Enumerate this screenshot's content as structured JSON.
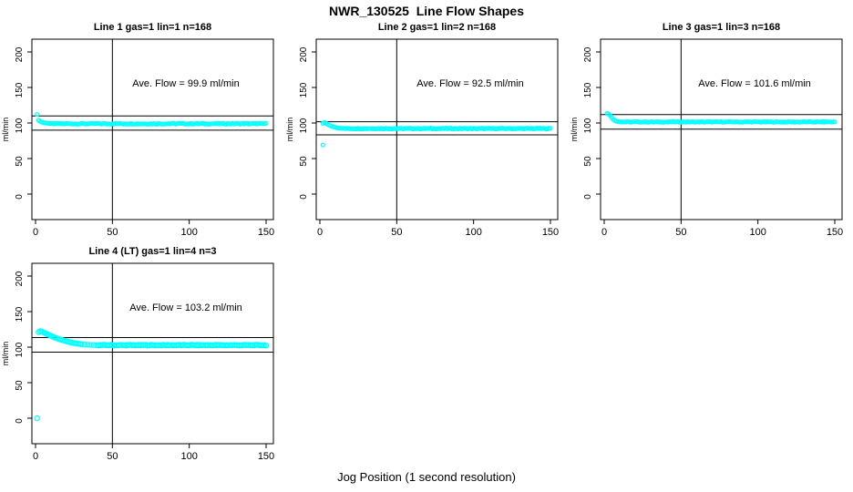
{
  "title": "NWR_130525  Line Flow Shapes",
  "xlabel": "Jog Position (1 second resolution)",
  "colors": {
    "point": "#00FFFF",
    "axis": "#000000",
    "background": "#FFFFFF"
  },
  "chart_data": [
    {
      "type": "scatter",
      "title": "Line 1 gas=1 lin=1 n=168",
      "ylabel": "ml/min",
      "annotation": "Ave. Flow =  99.9  ml/min",
      "ave_flow_ml_min": 99.9,
      "n": 168,
      "xlim": [
        0,
        157
      ],
      "ylim": [
        0,
        210
      ],
      "xticks": [
        0,
        50,
        100,
        150
      ],
      "yticks": [
        0,
        50,
        100,
        150,
        200
      ],
      "ref_lines_y": [
        109.9,
        89.9
      ],
      "vline_x": 50,
      "marker_r": 2,
      "points": [
        [
          1,
          112
        ],
        [
          2,
          104
        ],
        [
          3,
          102.3
        ],
        [
          4,
          101.3
        ],
        [
          5,
          100.6
        ],
        [
          6,
          100.2
        ],
        [
          7,
          99.9
        ],
        [
          8,
          99.6
        ],
        [
          9,
          99.4
        ],
        [
          10,
          99.2
        ]
      ],
      "plateau": {
        "x_start": 11,
        "x_end": 150,
        "y": 99.0,
        "jitter": 0.7
      }
    },
    {
      "type": "scatter",
      "title": "Line 2 gas=1 lin=2 n=168",
      "ylabel": "ml/min",
      "annotation": "Ave. Flow =  92.5  ml/min",
      "ave_flow_ml_min": 92.5,
      "n": 168,
      "xlim": [
        0,
        157
      ],
      "ylim": [
        0,
        210
      ],
      "xticks": [
        0,
        50,
        100,
        150
      ],
      "yticks": [
        0,
        50,
        100,
        150,
        200
      ],
      "ref_lines_y": [
        101.8,
        83.3
      ],
      "vline_x": 50,
      "marker_r": 2,
      "points": [
        [
          2,
          69
        ],
        [
          2,
          99.5
        ],
        [
          3,
          100.8
        ],
        [
          4,
          99.8
        ],
        [
          5,
          98.2
        ],
        [
          6,
          97
        ],
        [
          7,
          96
        ],
        [
          8,
          95.2
        ],
        [
          9,
          94.5
        ],
        [
          10,
          93.9
        ],
        [
          11,
          93.4
        ],
        [
          12,
          93
        ],
        [
          13,
          92.8
        ],
        [
          14,
          92.6
        ],
        [
          15,
          92.4
        ]
      ],
      "plateau": {
        "x_start": 16,
        "x_end": 150,
        "y": 92.2,
        "jitter": 0.6
      }
    },
    {
      "type": "scatter",
      "title": "Line 3 gas=1 lin=3 n=168",
      "ylabel": "ml/min",
      "annotation": "Ave. Flow =  101.6  ml/min",
      "ave_flow_ml_min": 101.6,
      "n": 168,
      "xlim": [
        0,
        157
      ],
      "ylim": [
        0,
        210
      ],
      "xticks": [
        0,
        50,
        100,
        150
      ],
      "yticks": [
        0,
        50,
        100,
        150,
        200
      ],
      "ref_lines_y": [
        111.8,
        91.4
      ],
      "vline_x": 50,
      "marker_r": 2,
      "points": [
        [
          2,
          113.5
        ],
        [
          3,
          112.5
        ],
        [
          4,
          110.5
        ],
        [
          5,
          107.5
        ],
        [
          6,
          105
        ],
        [
          7,
          103.3
        ],
        [
          8,
          102.4
        ],
        [
          9,
          101.9
        ],
        [
          10,
          101.6
        ]
      ],
      "plateau": {
        "x_start": 11,
        "x_end": 150,
        "y": 101.5,
        "jitter": 0.5
      }
    },
    {
      "type": "scatter",
      "title": "Line 4 (LT) gas=1 lin=4 n=3",
      "ylabel": "ml/min",
      "annotation": "Ave. Flow =  103.2  ml/min",
      "ave_flow_ml_min": 103.2,
      "n": 3,
      "xlim": [
        0,
        157
      ],
      "ylim": [
        0,
        210
      ],
      "xticks": [
        0,
        50,
        100,
        150
      ],
      "yticks": [
        0,
        50,
        100,
        150,
        200
      ],
      "ref_lines_y": [
        113.5,
        92.9
      ],
      "vline_x": 50,
      "marker_r": 2.6,
      "points": [
        [
          1,
          0
        ],
        [
          2,
          121
        ],
        [
          3,
          122.5
        ],
        [
          4,
          122
        ],
        [
          5,
          121
        ],
        [
          6,
          120
        ],
        [
          7,
          119
        ],
        [
          8,
          118
        ],
        [
          9,
          117
        ],
        [
          10,
          116
        ],
        [
          11,
          115
        ],
        [
          12,
          114
        ],
        [
          13,
          113.2
        ],
        [
          14,
          112.4
        ],
        [
          15,
          111.6
        ],
        [
          16,
          110.9
        ],
        [
          17,
          110.2
        ],
        [
          18,
          109.5
        ],
        [
          19,
          108.9
        ],
        [
          20,
          108.3
        ],
        [
          21,
          107.7
        ],
        [
          22,
          107.2
        ],
        [
          23,
          106.7
        ],
        [
          24,
          106.2
        ],
        [
          25,
          105.8
        ],
        [
          26,
          105.4
        ],
        [
          27,
          105
        ],
        [
          28,
          104.7
        ],
        [
          29,
          104.4
        ],
        [
          30,
          104.1
        ],
        [
          32,
          103.7
        ],
        [
          34,
          103.4
        ],
        [
          36,
          103.1
        ],
        [
          38,
          102.9
        ],
        [
          40,
          102.8
        ]
      ],
      "plateau": {
        "x_start": 41,
        "x_end": 150,
        "y": 102.8,
        "jitter": 0.6
      }
    }
  ]
}
